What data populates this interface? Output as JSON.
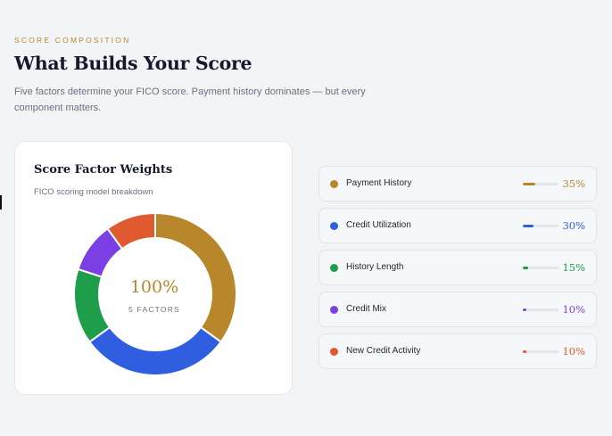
{
  "header": {
    "eyebrow": "SCORE COMPOSITION",
    "title": "What Builds Your Score",
    "subtitle": "Five factors determine your FICO score. Payment history dominates — but every component matters."
  },
  "card": {
    "title": "Score Factor Weights",
    "subtitle": "FICO scoring model breakdown",
    "center_value": "100%",
    "center_label": "5 FACTORS"
  },
  "factors": [
    {
      "name": "Payment History",
      "percent_label": "35%",
      "color": "#b8862b"
    },
    {
      "name": "Credit Utilization",
      "percent_label": "30%",
      "color": "#2f5fe0"
    },
    {
      "name": "History Length",
      "percent_label": "15%",
      "color": "#1e9e4a"
    },
    {
      "name": "Credit Mix",
      "percent_label": "10%",
      "color": "#7b3fe4"
    },
    {
      "name": "New Credit Activity",
      "percent_label": "10%",
      "color": "#e05a2f"
    }
  ],
  "chart_data": {
    "type": "pie",
    "categories": [
      "Payment History",
      "Credit Utilization",
      "History Length",
      "Credit Mix",
      "New Credit Activity"
    ],
    "values": [
      35,
      30,
      15,
      10,
      10
    ],
    "colors": [
      "#b8862b",
      "#2f5fe0",
      "#1e9e4a",
      "#7b3fe4",
      "#e05a2f"
    ],
    "title": "Score Factor Weights",
    "subtitle": "FICO scoring model breakdown"
  }
}
